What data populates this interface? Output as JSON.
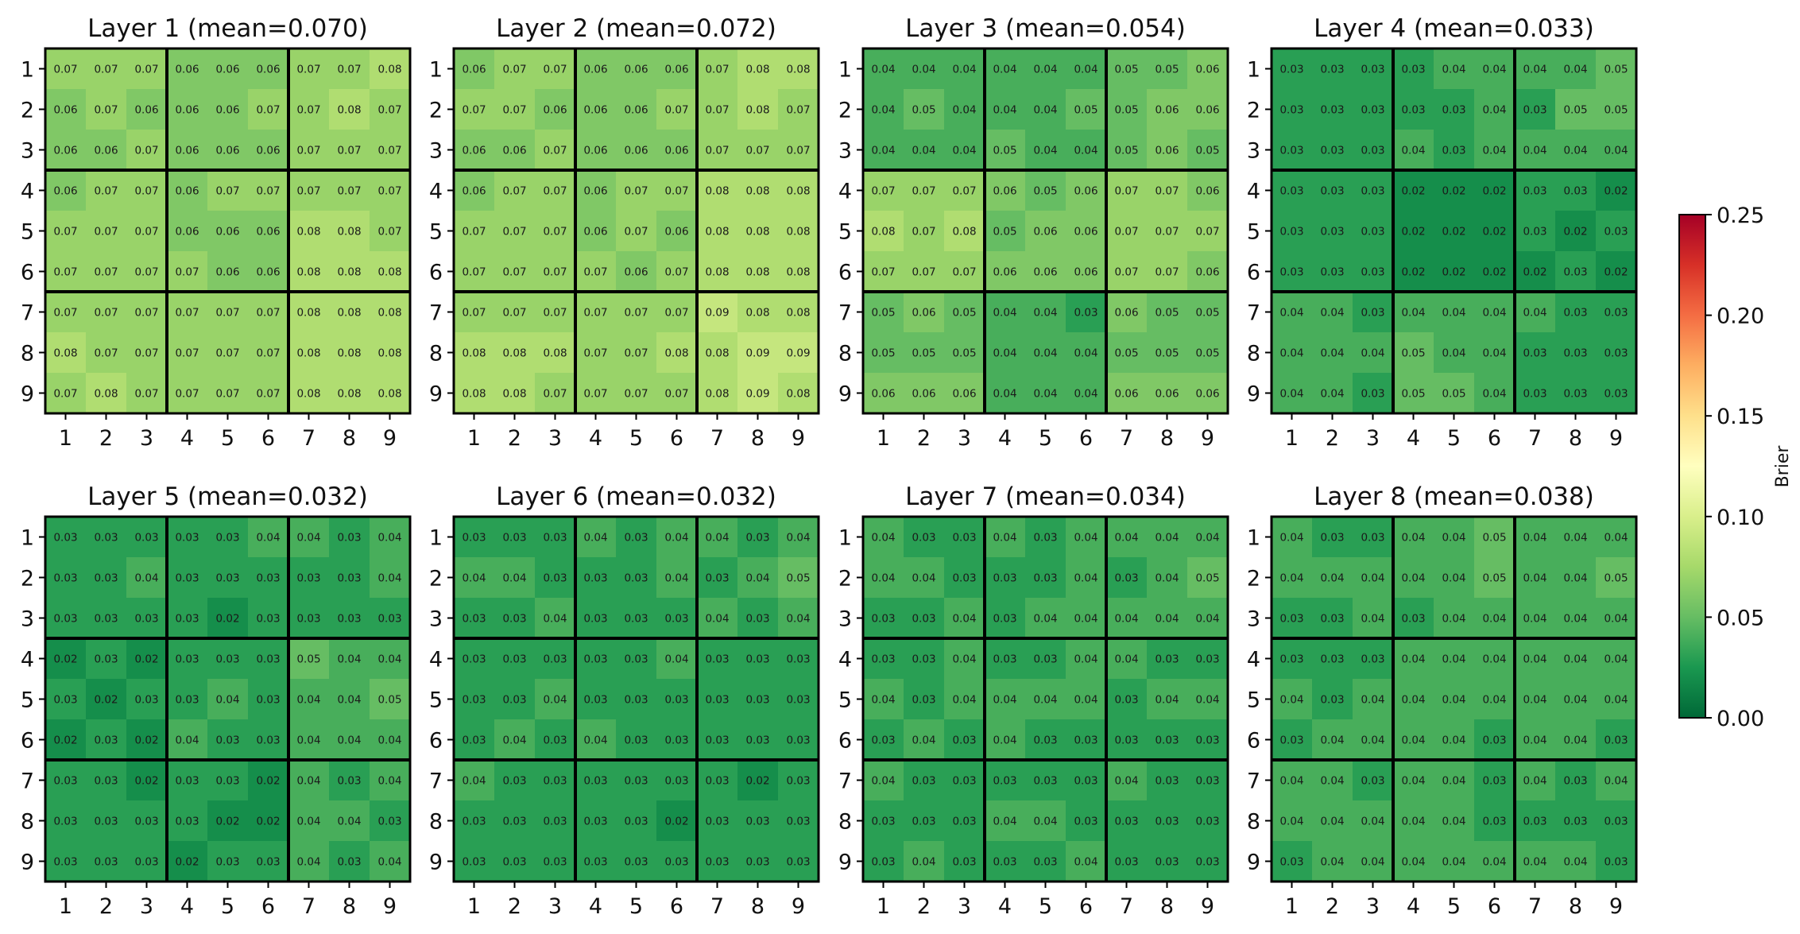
{
  "chart_data": {
    "type": "heatmap",
    "metric_label": "Brier",
    "colormap": "RdYlGn_r",
    "color_range": [
      0.0,
      0.25
    ],
    "colorbar_ticks": [
      "0.00",
      "0.05",
      "0.10",
      "0.15",
      "0.20",
      "0.25"
    ],
    "x_tick_labels": [
      "1",
      "2",
      "3",
      "4",
      "5",
      "6",
      "7",
      "8",
      "9"
    ],
    "y_tick_labels": [
      "1",
      "2",
      "3",
      "4",
      "5",
      "6",
      "7",
      "8",
      "9"
    ],
    "block_size": 3,
    "panels": [
      {
        "title": "Layer 1 (mean=0.070)",
        "values": [
          [
            0.07,
            0.07,
            0.07,
            0.06,
            0.06,
            0.06,
            0.07,
            0.07,
            0.08
          ],
          [
            0.06,
            0.07,
            0.06,
            0.06,
            0.06,
            0.07,
            0.07,
            0.08,
            0.07
          ],
          [
            0.06,
            0.06,
            0.07,
            0.06,
            0.06,
            0.06,
            0.07,
            0.07,
            0.07
          ],
          [
            0.06,
            0.07,
            0.07,
            0.06,
            0.07,
            0.07,
            0.07,
            0.07,
            0.07
          ],
          [
            0.07,
            0.07,
            0.07,
            0.06,
            0.06,
            0.06,
            0.08,
            0.08,
            0.07
          ],
          [
            0.07,
            0.07,
            0.07,
            0.07,
            0.06,
            0.06,
            0.08,
            0.08,
            0.08
          ],
          [
            0.07,
            0.07,
            0.07,
            0.07,
            0.07,
            0.07,
            0.08,
            0.08,
            0.08
          ],
          [
            0.08,
            0.07,
            0.07,
            0.07,
            0.07,
            0.07,
            0.08,
            0.08,
            0.08
          ],
          [
            0.07,
            0.08,
            0.07,
            0.07,
            0.07,
            0.07,
            0.08,
            0.08,
            0.08
          ]
        ]
      },
      {
        "title": "Layer 2 (mean=0.072)",
        "values": [
          [
            0.06,
            0.07,
            0.07,
            0.06,
            0.06,
            0.06,
            0.07,
            0.08,
            0.08
          ],
          [
            0.07,
            0.07,
            0.06,
            0.06,
            0.06,
            0.07,
            0.07,
            0.08,
            0.07
          ],
          [
            0.06,
            0.06,
            0.07,
            0.06,
            0.06,
            0.06,
            0.07,
            0.07,
            0.07
          ],
          [
            0.06,
            0.07,
            0.07,
            0.06,
            0.07,
            0.07,
            0.08,
            0.08,
            0.08
          ],
          [
            0.07,
            0.07,
            0.07,
            0.06,
            0.07,
            0.06,
            0.08,
            0.08,
            0.08
          ],
          [
            0.07,
            0.07,
            0.07,
            0.07,
            0.06,
            0.07,
            0.08,
            0.08,
            0.08
          ],
          [
            0.07,
            0.07,
            0.07,
            0.07,
            0.07,
            0.07,
            0.09,
            0.08,
            0.08
          ],
          [
            0.08,
            0.08,
            0.08,
            0.07,
            0.07,
            0.08,
            0.08,
            0.09,
            0.09
          ],
          [
            0.08,
            0.08,
            0.07,
            0.07,
            0.07,
            0.07,
            0.08,
            0.09,
            0.08
          ]
        ]
      },
      {
        "title": "Layer 3 (mean=0.054)",
        "values": [
          [
            0.04,
            0.04,
            0.04,
            0.04,
            0.04,
            0.04,
            0.05,
            0.05,
            0.06
          ],
          [
            0.04,
            0.05,
            0.04,
            0.04,
            0.04,
            0.05,
            0.05,
            0.06,
            0.06
          ],
          [
            0.04,
            0.04,
            0.04,
            0.05,
            0.04,
            0.04,
            0.05,
            0.06,
            0.05
          ],
          [
            0.07,
            0.07,
            0.07,
            0.06,
            0.05,
            0.06,
            0.07,
            0.07,
            0.06
          ],
          [
            0.08,
            0.07,
            0.08,
            0.05,
            0.06,
            0.06,
            0.07,
            0.07,
            0.07
          ],
          [
            0.07,
            0.07,
            0.07,
            0.06,
            0.06,
            0.06,
            0.07,
            0.07,
            0.06
          ],
          [
            0.05,
            0.06,
            0.05,
            0.04,
            0.04,
            0.03,
            0.06,
            0.05,
            0.05
          ],
          [
            0.05,
            0.05,
            0.05,
            0.04,
            0.04,
            0.04,
            0.05,
            0.05,
            0.05
          ],
          [
            0.06,
            0.06,
            0.06,
            0.04,
            0.04,
            0.04,
            0.06,
            0.06,
            0.06
          ]
        ]
      },
      {
        "title": "Layer 4 (mean=0.033)",
        "values": [
          [
            0.03,
            0.03,
            0.03,
            0.03,
            0.04,
            0.04,
            0.04,
            0.04,
            0.05
          ],
          [
            0.03,
            0.03,
            0.03,
            0.03,
            0.03,
            0.04,
            0.03,
            0.05,
            0.05
          ],
          [
            0.03,
            0.03,
            0.03,
            0.04,
            0.03,
            0.04,
            0.04,
            0.04,
            0.04
          ],
          [
            0.03,
            0.03,
            0.03,
            0.02,
            0.02,
            0.02,
            0.03,
            0.03,
            0.02
          ],
          [
            0.03,
            0.03,
            0.03,
            0.02,
            0.02,
            0.02,
            0.03,
            0.02,
            0.03
          ],
          [
            0.03,
            0.03,
            0.03,
            0.02,
            0.02,
            0.02,
            0.02,
            0.03,
            0.02
          ],
          [
            0.04,
            0.04,
            0.03,
            0.04,
            0.04,
            0.04,
            0.04,
            0.03,
            0.03
          ],
          [
            0.04,
            0.04,
            0.04,
            0.05,
            0.04,
            0.04,
            0.03,
            0.03,
            0.03
          ],
          [
            0.04,
            0.04,
            0.03,
            0.05,
            0.05,
            0.04,
            0.03,
            0.03,
            0.03
          ]
        ]
      },
      {
        "title": "Layer 5 (mean=0.032)",
        "values": [
          [
            0.03,
            0.03,
            0.03,
            0.03,
            0.03,
            0.04,
            0.04,
            0.03,
            0.04
          ],
          [
            0.03,
            0.03,
            0.04,
            0.03,
            0.03,
            0.03,
            0.03,
            0.03,
            0.04
          ],
          [
            0.03,
            0.03,
            0.03,
            0.03,
            0.02,
            0.03,
            0.03,
            0.03,
            0.03
          ],
          [
            0.02,
            0.03,
            0.02,
            0.03,
            0.03,
            0.03,
            0.05,
            0.04,
            0.04
          ],
          [
            0.03,
            0.02,
            0.03,
            0.03,
            0.04,
            0.03,
            0.04,
            0.04,
            0.05
          ],
          [
            0.02,
            0.03,
            0.02,
            0.04,
            0.03,
            0.03,
            0.04,
            0.04,
            0.04
          ],
          [
            0.03,
            0.03,
            0.02,
            0.03,
            0.03,
            0.02,
            0.04,
            0.03,
            0.04
          ],
          [
            0.03,
            0.03,
            0.03,
            0.03,
            0.02,
            0.02,
            0.04,
            0.04,
            0.03
          ],
          [
            0.03,
            0.03,
            0.03,
            0.02,
            0.03,
            0.03,
            0.04,
            0.03,
            0.04
          ]
        ]
      },
      {
        "title": "Layer 6 (mean=0.032)",
        "values": [
          [
            0.03,
            0.03,
            0.03,
            0.04,
            0.03,
            0.04,
            0.04,
            0.03,
            0.04
          ],
          [
            0.04,
            0.04,
            0.03,
            0.03,
            0.03,
            0.04,
            0.03,
            0.04,
            0.05
          ],
          [
            0.03,
            0.03,
            0.04,
            0.03,
            0.03,
            0.03,
            0.04,
            0.03,
            0.04
          ],
          [
            0.03,
            0.03,
            0.03,
            0.03,
            0.03,
            0.04,
            0.03,
            0.03,
            0.03
          ],
          [
            0.03,
            0.03,
            0.04,
            0.03,
            0.03,
            0.03,
            0.03,
            0.03,
            0.03
          ],
          [
            0.03,
            0.04,
            0.03,
            0.04,
            0.03,
            0.03,
            0.03,
            0.03,
            0.03
          ],
          [
            0.04,
            0.03,
            0.03,
            0.03,
            0.03,
            0.03,
            0.03,
            0.02,
            0.03
          ],
          [
            0.03,
            0.03,
            0.03,
            0.03,
            0.03,
            0.02,
            0.03,
            0.03,
            0.03
          ],
          [
            0.03,
            0.03,
            0.03,
            0.03,
            0.03,
            0.03,
            0.03,
            0.03,
            0.03
          ]
        ]
      },
      {
        "title": "Layer 7 (mean=0.034)",
        "values": [
          [
            0.04,
            0.03,
            0.03,
            0.04,
            0.03,
            0.04,
            0.04,
            0.04,
            0.04
          ],
          [
            0.04,
            0.04,
            0.03,
            0.03,
            0.03,
            0.04,
            0.03,
            0.04,
            0.05
          ],
          [
            0.03,
            0.03,
            0.04,
            0.03,
            0.04,
            0.04,
            0.04,
            0.04,
            0.04
          ],
          [
            0.03,
            0.03,
            0.04,
            0.03,
            0.03,
            0.04,
            0.04,
            0.03,
            0.03
          ],
          [
            0.04,
            0.03,
            0.04,
            0.04,
            0.04,
            0.04,
            0.03,
            0.04,
            0.04
          ],
          [
            0.03,
            0.04,
            0.03,
            0.04,
            0.03,
            0.03,
            0.03,
            0.03,
            0.03
          ],
          [
            0.04,
            0.03,
            0.03,
            0.03,
            0.03,
            0.03,
            0.04,
            0.03,
            0.03
          ],
          [
            0.03,
            0.03,
            0.03,
            0.04,
            0.04,
            0.03,
            0.03,
            0.03,
            0.03
          ],
          [
            0.03,
            0.04,
            0.03,
            0.03,
            0.03,
            0.04,
            0.03,
            0.03,
            0.03
          ]
        ]
      },
      {
        "title": "Layer 8 (mean=0.038)",
        "values": [
          [
            0.04,
            0.03,
            0.03,
            0.04,
            0.04,
            0.05,
            0.04,
            0.04,
            0.04
          ],
          [
            0.04,
            0.04,
            0.04,
            0.04,
            0.04,
            0.05,
            0.04,
            0.04,
            0.05
          ],
          [
            0.03,
            0.03,
            0.04,
            0.03,
            0.04,
            0.04,
            0.04,
            0.04,
            0.04
          ],
          [
            0.03,
            0.03,
            0.03,
            0.04,
            0.04,
            0.04,
            0.04,
            0.04,
            0.04
          ],
          [
            0.04,
            0.03,
            0.04,
            0.04,
            0.04,
            0.04,
            0.04,
            0.04,
            0.04
          ],
          [
            0.03,
            0.04,
            0.04,
            0.04,
            0.04,
            0.03,
            0.04,
            0.04,
            0.03
          ],
          [
            0.04,
            0.04,
            0.03,
            0.04,
            0.04,
            0.03,
            0.04,
            0.03,
            0.04
          ],
          [
            0.04,
            0.04,
            0.04,
            0.04,
            0.04,
            0.03,
            0.03,
            0.03,
            0.03
          ],
          [
            0.03,
            0.04,
            0.04,
            0.04,
            0.04,
            0.04,
            0.04,
            0.04,
            0.03
          ]
        ]
      }
    ]
  }
}
